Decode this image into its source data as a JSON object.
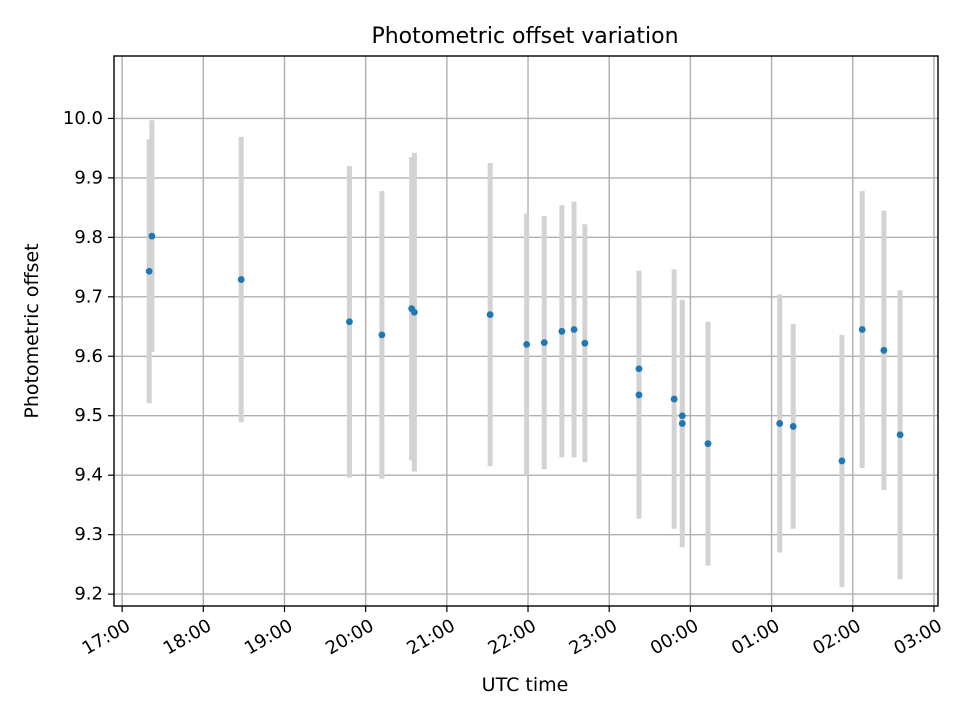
{
  "chart_data": {
    "type": "scatter",
    "title": "Photometric offset variation",
    "xlabel": "UTC time",
    "ylabel": "Photometric offset",
    "x_axis": {
      "kind": "time",
      "range": [
        "2024-01-01T16:54",
        "2024-01-02T03:03"
      ],
      "ticks": [
        "17:00",
        "18:00",
        "19:00",
        "20:00",
        "21:00",
        "22:00",
        "23:00",
        "00:00",
        "01:00",
        "02:00",
        "03:00"
      ],
      "tick_times": [
        "2024-01-01T17:00",
        "2024-01-01T18:00",
        "2024-01-01T19:00",
        "2024-01-01T20:00",
        "2024-01-01T21:00",
        "2024-01-01T22:00",
        "2024-01-01T23:00",
        "2024-01-02T00:00",
        "2024-01-02T01:00",
        "2024-01-02T02:00",
        "2024-01-02T03:00"
      ]
    },
    "ylim": [
      9.18,
      10.105
    ],
    "yticks": [
      "9.2",
      "9.3",
      "9.4",
      "9.5",
      "9.6",
      "9.7",
      "9.8",
      "9.9",
      "10.0"
    ],
    "grid": true,
    "colors": {
      "marker": "#1f77b4",
      "errorbar": "#d3d3d3"
    },
    "points": [
      {
        "t": "2024-01-01T17:20",
        "y": 9.743,
        "err": 0.222
      },
      {
        "t": "2024-01-01T17:22",
        "y": 9.802,
        "err": 0.195
      },
      {
        "t": "2024-01-01T18:28",
        "y": 9.729,
        "err": 0.24
      },
      {
        "t": "2024-01-01T19:48",
        "y": 9.658,
        "err": 0.262
      },
      {
        "t": "2024-01-01T20:12",
        "y": 9.636,
        "err": 0.242
      },
      {
        "t": "2024-01-01T20:34",
        "y": 9.68,
        "err": 0.255
      },
      {
        "t": "2024-01-01T20:36",
        "y": 9.674,
        "err": 0.268
      },
      {
        "t": "2024-01-01T21:32",
        "y": 9.67,
        "err": 0.255
      },
      {
        "t": "2024-01-01T21:59",
        "y": 9.62,
        "err": 0.22
      },
      {
        "t": "2024-01-01T22:12",
        "y": 9.623,
        "err": 0.213
      },
      {
        "t": "2024-01-01T22:25",
        "y": 9.642,
        "err": 0.212
      },
      {
        "t": "2024-01-01T22:34",
        "y": 9.645,
        "err": 0.215
      },
      {
        "t": "2024-01-01T22:42",
        "y": 9.622,
        "err": 0.2
      },
      {
        "t": "2024-01-01T23:22",
        "y": 9.579,
        "err": 0.165
      },
      {
        "t": "2024-01-01T23:22",
        "y": 9.535,
        "err": 0.208
      },
      {
        "t": "2024-01-01T23:48",
        "y": 9.528,
        "err": 0.218
      },
      {
        "t": "2024-01-01T23:54",
        "y": 9.5,
        "err": 0.195
      },
      {
        "t": "2024-01-01T23:54",
        "y": 9.487,
        "err": 0.208
      },
      {
        "t": "2024-01-02T00:13",
        "y": 9.453,
        "err": 0.205
      },
      {
        "t": "2024-01-02T01:06",
        "y": 9.487,
        "err": 0.217
      },
      {
        "t": "2024-01-02T01:16",
        "y": 9.482,
        "err": 0.172
      },
      {
        "t": "2024-01-02T01:52",
        "y": 9.424,
        "err": 0.212
      },
      {
        "t": "2024-01-02T02:07",
        "y": 9.645,
        "err": 0.233
      },
      {
        "t": "2024-01-02T02:23",
        "y": 9.61,
        "err": 0.235
      },
      {
        "t": "2024-01-02T02:35",
        "y": 9.468,
        "err": 0.243
      }
    ]
  }
}
